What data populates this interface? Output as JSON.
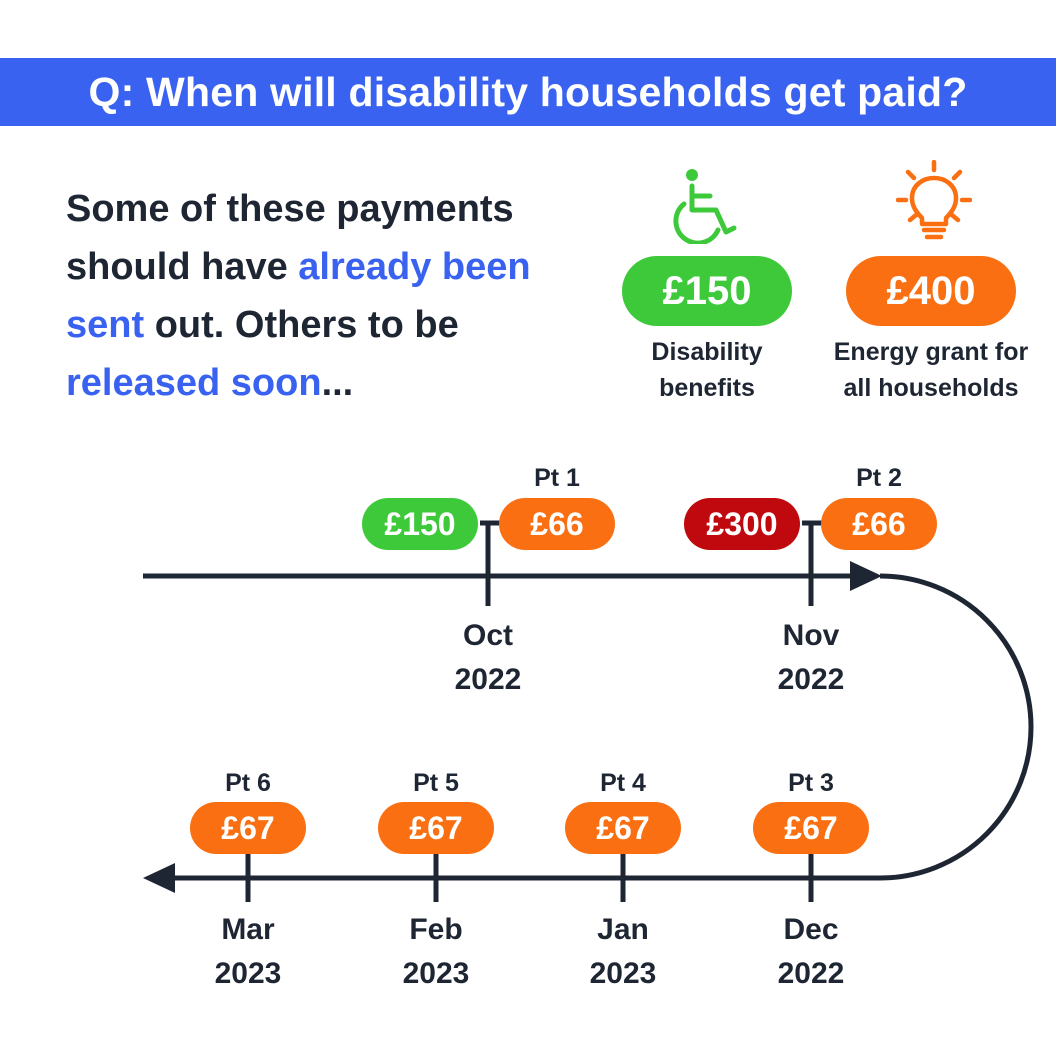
{
  "header": {
    "question": "Q: When will disability households get paid?"
  },
  "intro": {
    "part1": "Some of these payments should have ",
    "highlight1": "already been sent",
    "part2": " out. Others to be ",
    "highlight2": "released soon",
    "part3": "..."
  },
  "legend": [
    {
      "amount": "£150",
      "line1": "Disability",
      "line2": "benefits",
      "color": "#3ec93b",
      "icon": "wheelchair-icon"
    },
    {
      "amount": "£400",
      "line1": "Energy grant for",
      "line2": "all households",
      "color": "#f96f11",
      "icon": "lightbulb-icon"
    }
  ],
  "colors": {
    "green": "#3ec93b",
    "orange": "#f96f11",
    "red": "#c0090e",
    "blue": "#3a62f0",
    "line": "#1f2633"
  },
  "timeline": {
    "top": [
      {
        "month": "Oct",
        "year": "2022",
        "pt": "Pt 1",
        "amount": "£66",
        "extra": "£150"
      },
      {
        "month": "Nov",
        "year": "2022",
        "pt": "Pt 2",
        "amount": "£66",
        "extra": "£300"
      }
    ],
    "bottom": [
      {
        "month": "Mar",
        "year": "2023",
        "pt": "Pt 6",
        "amount": "£67"
      },
      {
        "month": "Feb",
        "year": "2023",
        "pt": "Pt 5",
        "amount": "£67"
      },
      {
        "month": "Jan",
        "year": "2023",
        "pt": "Pt 4",
        "amount": "£67"
      },
      {
        "month": "Dec",
        "year": "2022",
        "pt": "Pt 3",
        "amount": "£67"
      }
    ]
  }
}
